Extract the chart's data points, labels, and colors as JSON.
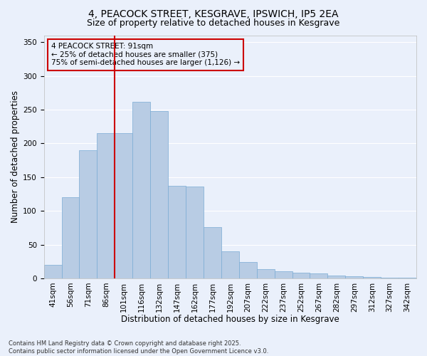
{
  "title_line1": "4, PEACOCK STREET, KESGRAVE, IPSWICH, IP5 2EA",
  "title_line2": "Size of property relative to detached houses in Kesgrave",
  "xlabel": "Distribution of detached houses by size in Kesgrave",
  "ylabel": "Number of detached properties",
  "categories": [
    "41sqm",
    "56sqm",
    "71sqm",
    "86sqm",
    "101sqm",
    "116sqm",
    "132sqm",
    "147sqm",
    "162sqm",
    "177sqm",
    "192sqm",
    "207sqm",
    "222sqm",
    "237sqm",
    "252sqm",
    "267sqm",
    "282sqm",
    "297sqm",
    "312sqm",
    "327sqm",
    "342sqm"
  ],
  "values": [
    20,
    120,
    190,
    215,
    215,
    262,
    248,
    137,
    136,
    76,
    40,
    24,
    14,
    10,
    8,
    7,
    4,
    3,
    2,
    1,
    1
  ],
  "bar_color": "#b8cce4",
  "bar_edge_color": "#7aabd4",
  "bg_color": "#eaf0fb",
  "grid_color": "#ffffff",
  "vline_color": "#cc0000",
  "annotation_text": "4 PEACOCK STREET: 91sqm\n← 25% of detached houses are smaller (375)\n75% of semi-detached houses are larger (1,126) →",
  "annotation_box_edge": "#cc0000",
  "annotation_fontsize": 7.5,
  "ylim": [
    0,
    360
  ],
  "yticks": [
    0,
    50,
    100,
    150,
    200,
    250,
    300,
    350
  ],
  "footnote": "Contains HM Land Registry data © Crown copyright and database right 2025.\nContains public sector information licensed under the Open Government Licence v3.0.",
  "title_fontsize": 10,
  "subtitle_fontsize": 9,
  "axis_label_fontsize": 8.5,
  "tick_fontsize": 7.5
}
